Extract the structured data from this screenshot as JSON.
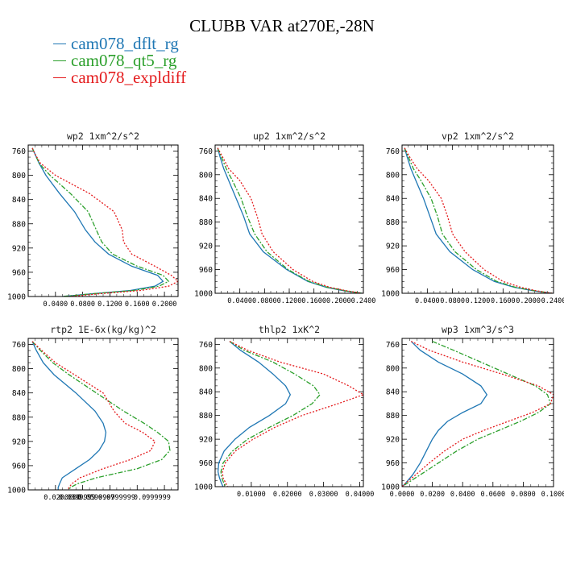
{
  "title": "CLUBB VAR at270E,-28N",
  "colors": {
    "cam078_dflt_rg": "#1f77b4",
    "cam078_qt5_rg": "#2ca02c",
    "cam078_expldiff": "#e41a1c"
  },
  "legend": [
    {
      "name": "cam078_dflt_rg",
      "color": "#1f77b4"
    },
    {
      "name": "cam078_qt5_rg",
      "color": "#2ca02c"
    },
    {
      "name": "cam078_expldiff",
      "color": "#e41a1c"
    }
  ],
  "chart_data": [
    {
      "type": "line",
      "title": "wp2  1xm^2/s^2",
      "ylim": [
        1000,
        750
      ],
      "yticks": [
        760,
        800,
        840,
        880,
        920,
        960,
        1000
      ],
      "ytick_labels": [
        "760",
        "800",
        "840",
        "880",
        "920",
        "960",
        "1000"
      ],
      "xlim": [
        0.0,
        0.22
      ],
      "xticks": [
        0.04,
        0.08,
        0.12,
        0.16,
        0.2
      ],
      "xtick_labels": [
        "0.0400",
        "0.0800",
        "0.1200",
        "0.1600",
        "0.2000"
      ],
      "y": [
        755,
        765,
        780,
        800,
        830,
        860,
        890,
        910,
        930,
        950,
        965,
        975,
        983,
        990,
        995,
        1000
      ],
      "series": [
        {
          "name": "cam078_dflt_rg",
          "x": [
            0.006,
            0.01,
            0.016,
            0.026,
            0.046,
            0.068,
            0.084,
            0.098,
            0.118,
            0.152,
            0.19,
            0.198,
            0.186,
            0.15,
            0.1,
            0.05
          ]
        },
        {
          "name": "cam078_qt5_rg",
          "x": [
            0.006,
            0.01,
            0.016,
            0.032,
            0.062,
            0.088,
            0.1,
            0.108,
            0.124,
            0.16,
            0.198,
            0.206,
            0.192,
            0.155,
            0.1,
            0.05
          ]
        },
        {
          "name": "cam078_expldiff",
          "x": [
            0.006,
            0.01,
            0.018,
            0.04,
            0.09,
            0.126,
            0.138,
            0.14,
            0.152,
            0.186,
            0.21,
            0.22,
            0.206,
            0.165,
            0.11,
            0.06
          ]
        }
      ]
    },
    {
      "type": "line",
      "title": "up2  1xm^2/s^2",
      "ylim": [
        1000,
        750
      ],
      "yticks": [
        760,
        800,
        840,
        880,
        920,
        960,
        1000
      ],
      "ytick_labels": [
        "760",
        "800",
        "840",
        "880",
        "920",
        "960",
        "1000"
      ],
      "xlim": [
        0.0,
        0.24
      ],
      "xticks": [
        0.04,
        0.08,
        0.12,
        0.16,
        0.2,
        0.24
      ],
      "xtick_labels": [
        "0.0400",
        "0.0800",
        "0.1200",
        "0.1600",
        "0.2000",
        "0.2400"
      ],
      "y": [
        755,
        770,
        790,
        810,
        840,
        870,
        900,
        930,
        960,
        980,
        990,
        996,
        1000
      ],
      "series": [
        {
          "name": "cam078_dflt_rg",
          "x": [
            0.004,
            0.008,
            0.014,
            0.022,
            0.034,
            0.046,
            0.056,
            0.078,
            0.116,
            0.15,
            0.18,
            0.21,
            0.238
          ]
        },
        {
          "name": "cam078_qt5_rg",
          "x": [
            0.004,
            0.01,
            0.018,
            0.028,
            0.042,
            0.052,
            0.064,
            0.084,
            0.118,
            0.152,
            0.182,
            0.212,
            0.238
          ]
        },
        {
          "name": "cam078_expldiff",
          "x": [
            0.004,
            0.012,
            0.022,
            0.04,
            0.058,
            0.068,
            0.076,
            0.094,
            0.126,
            0.158,
            0.186,
            0.214,
            0.238
          ]
        }
      ]
    },
    {
      "type": "line",
      "title": "vp2  1xm^2/s^2",
      "ylim": [
        1000,
        750
      ],
      "yticks": [
        760,
        800,
        840,
        880,
        920,
        960,
        1000
      ],
      "ytick_labels": [
        "760",
        "800",
        "840",
        "880",
        "920",
        "960",
        "1000"
      ],
      "xlim": [
        0.0,
        0.24
      ],
      "xticks": [
        0.04,
        0.08,
        0.12,
        0.16,
        0.2,
        0.24
      ],
      "xtick_labels": [
        "0.0400",
        "0.0800",
        "0.1200",
        "0.1600",
        "0.2000",
        "0.2400"
      ],
      "y": [
        755,
        770,
        790,
        810,
        840,
        870,
        900,
        930,
        960,
        980,
        990,
        996,
        1000
      ],
      "series": [
        {
          "name": "cam078_dflt_rg",
          "x": [
            0.004,
            0.008,
            0.014,
            0.022,
            0.034,
            0.044,
            0.054,
            0.076,
            0.112,
            0.146,
            0.178,
            0.21,
            0.238
          ]
        },
        {
          "name": "cam078_qt5_rg",
          "x": [
            0.004,
            0.01,
            0.018,
            0.03,
            0.046,
            0.056,
            0.064,
            0.084,
            0.118,
            0.15,
            0.18,
            0.212,
            0.238
          ]
        },
        {
          "name": "cam078_expldiff",
          "x": [
            0.004,
            0.012,
            0.024,
            0.042,
            0.062,
            0.072,
            0.08,
            0.1,
            0.13,
            0.16,
            0.188,
            0.214,
            0.238
          ]
        }
      ]
    },
    {
      "type": "line",
      "title": "rtp2  1E-6x(kg/kg)^2",
      "ylim": [
        1000,
        750
      ],
      "yticks": [
        760,
        800,
        840,
        880,
        920,
        960,
        1000
      ],
      "ytick_labels": [
        "760",
        "800",
        "840",
        "880",
        "920",
        "960",
        "1000"
      ],
      "xlim": [
        0.0,
        0.22
      ],
      "xticks": [
        0.04,
        0.08,
        0.12,
        0.16,
        0.2
      ],
      "xtick_labels": [
        "0.0200000",
        "0.0399999",
        "0.0599999",
        "0.0799999",
        "0.0999999"
      ],
      "xtick_label_x": [
        0.05,
        0.072,
        0.1,
        0.13,
        0.182
      ],
      "y": [
        755,
        770,
        790,
        810,
        840,
        870,
        890,
        905,
        920,
        935,
        950,
        965,
        980,
        990,
        996,
        1000
      ],
      "series": [
        {
          "name": "cam078_dflt_rg",
          "x": [
            0.006,
            0.012,
            0.022,
            0.038,
            0.07,
            0.098,
            0.11,
            0.114,
            0.112,
            0.104,
            0.09,
            0.07,
            0.05,
            0.046,
            0.044,
            0.044
          ]
        },
        {
          "name": "cam078_qt5_rg",
          "x": [
            0.006,
            0.018,
            0.036,
            0.06,
            0.1,
            0.14,
            0.17,
            0.19,
            0.206,
            0.208,
            0.196,
            0.16,
            0.1,
            0.072,
            0.062,
            0.06
          ]
        },
        {
          "name": "cam078_expldiff",
          "x": [
            0.006,
            0.02,
            0.04,
            0.068,
            0.11,
            0.126,
            0.142,
            0.168,
            0.186,
            0.18,
            0.15,
            0.11,
            0.076,
            0.064,
            0.06,
            0.058
          ]
        }
      ]
    },
    {
      "type": "line",
      "title": "thlp2  1xK^2",
      "ylim": [
        1000,
        750
      ],
      "yticks": [
        760,
        800,
        840,
        880,
        920,
        960,
        1000
      ],
      "ytick_labels": [
        "760",
        "800",
        "840",
        "880",
        "920",
        "960",
        "1000"
      ],
      "xlim": [
        0.0,
        0.041
      ],
      "xticks": [
        0.01,
        0.02,
        0.03,
        0.04
      ],
      "xtick_labels": [
        "0.01000",
        "0.02000",
        "0.03000",
        "0.04000"
      ],
      "y": [
        755,
        770,
        790,
        810,
        830,
        845,
        860,
        880,
        900,
        920,
        940,
        960,
        975,
        985,
        995,
        1000
      ],
      "series": [
        {
          "name": "cam078_dflt_rg",
          "x": [
            0.004,
            0.007,
            0.012,
            0.016,
            0.0195,
            0.0208,
            0.0195,
            0.015,
            0.0095,
            0.0055,
            0.0025,
            0.001,
            0.0008,
            0.0012,
            0.0018,
            0.0022
          ]
        },
        {
          "name": "cam078_qt5_rg",
          "x": [
            0.004,
            0.008,
            0.016,
            0.022,
            0.0272,
            0.029,
            0.0268,
            0.0215,
            0.015,
            0.009,
            0.0048,
            0.0022,
            0.0016,
            0.0018,
            0.0025,
            0.003
          ]
        },
        {
          "name": "cam078_expldiff",
          "x": [
            0.004,
            0.009,
            0.018,
            0.03,
            0.037,
            0.041,
            0.034,
            0.024,
            0.0165,
            0.0105,
            0.0056,
            0.0028,
            0.002,
            0.0022,
            0.003,
            0.0035
          ]
        }
      ]
    },
    {
      "type": "line",
      "title": "wp3  1xm^3/s^3",
      "ylim": [
        1000,
        750
      ],
      "yticks": [
        760,
        800,
        840,
        880,
        920,
        960,
        1000
      ],
      "ytick_labels": [
        "760",
        "800",
        "840",
        "880",
        "920",
        "960",
        "1000"
      ],
      "xlim": [
        0.0,
        0.1
      ],
      "xticks": [
        0.0,
        0.02,
        0.04,
        0.06,
        0.08,
        0.1
      ],
      "xtick_labels": [
        "0.0000",
        "0.0200",
        "0.0400",
        "0.0600",
        "0.0800",
        "0.1000"
      ],
      "y": [
        755,
        770,
        790,
        810,
        830,
        845,
        860,
        875,
        890,
        905,
        920,
        940,
        960,
        980,
        995,
        1000
      ],
      "series": [
        {
          "name": "cam078_dflt_rg",
          "x": [
            0.006,
            0.012,
            0.024,
            0.04,
            0.052,
            0.056,
            0.052,
            0.04,
            0.03,
            0.024,
            0.02,
            0.016,
            0.012,
            0.007,
            0.002,
            0.0
          ]
        },
        {
          "name": "cam078_qt5_rg",
          "x": [
            0.02,
            0.034,
            0.052,
            0.07,
            0.088,
            0.096,
            0.098,
            0.09,
            0.078,
            0.064,
            0.05,
            0.036,
            0.024,
            0.012,
            0.003,
            0.0
          ]
        },
        {
          "name": "cam078_expldiff",
          "x": [
            0.006,
            0.018,
            0.04,
            0.066,
            0.09,
            0.1,
            0.098,
            0.086,
            0.07,
            0.054,
            0.04,
            0.028,
            0.018,
            0.009,
            0.002,
            0.0
          ]
        }
      ]
    }
  ]
}
